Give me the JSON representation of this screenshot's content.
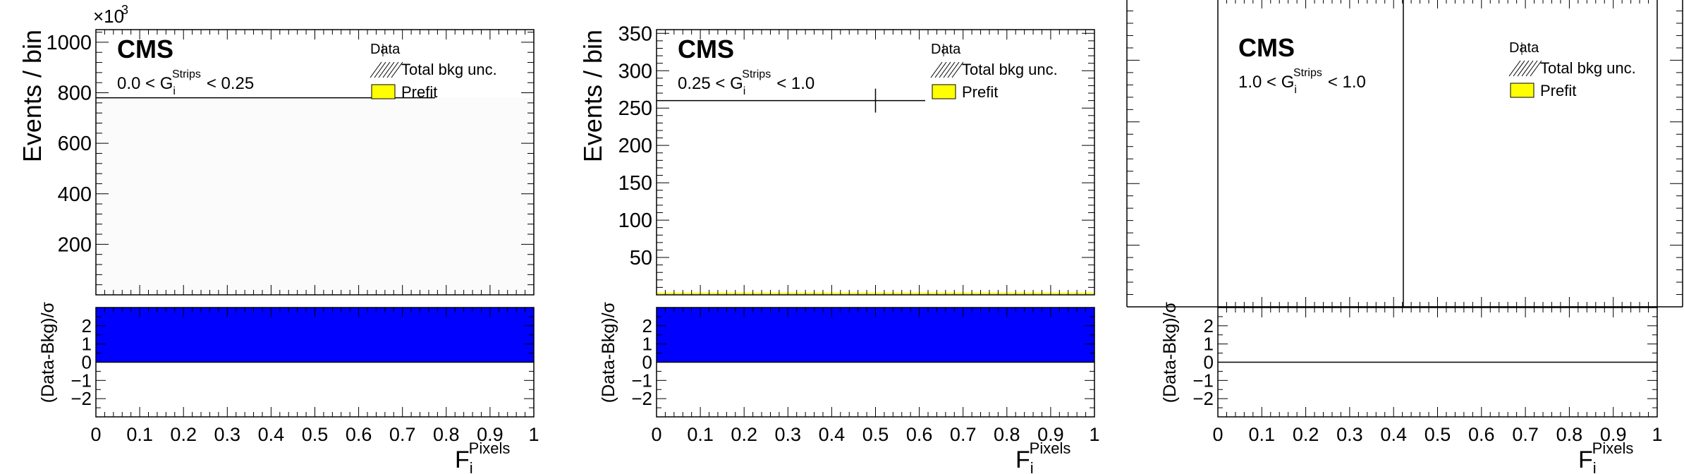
{
  "chart_data": [
    {
      "type": "bar",
      "experiment": "CMS",
      "region_label": "0.0 < G",
      "region_var_sub": "i",
      "region_var_sup": "Strips",
      "region_upper": "< 0.25",
      "ylabel": "Events / bin",
      "y_exponent_base": "×10",
      "y_exponent": "3",
      "xlabel_main": "F",
      "xlabel_sub": "i",
      "xlabel_sup": "Pixels",
      "ratio_ylabel": "(Data-Bkg)/σ",
      "legend": [
        "Data",
        "Total bkg unc.",
        "Prefit"
      ],
      "ylim": [
        0,
        1050000
      ],
      "yticks": [
        200000,
        400000,
        600000,
        800000,
        1000000
      ],
      "ytick_labels": [
        "200",
        "400",
        "600",
        "800",
        "1000"
      ],
      "xlim": [
        0,
        1
      ],
      "xtick_labels": [
        "0",
        "0.1",
        "0.2",
        "0.3",
        "0.4",
        "0.5",
        "0.6",
        "0.7",
        "0.8",
        "0.9",
        "1"
      ],
      "ratio_ylim": [
        -3,
        3
      ],
      "ratio_yticks": [
        -2,
        -1,
        0,
        1,
        2
      ],
      "ratio_ytick_labels": [
        "−2",
        "−1",
        "0",
        "1",
        "2"
      ],
      "data_points": [
        {
          "x": 0.5,
          "xerr": 0.5,
          "y": 780000,
          "yerr": 0
        }
      ],
      "background": [
        {
          "x0": 0,
          "x1": 1,
          "y": 780000
        }
      ],
      "pull": [
        {
          "x0": 0,
          "x1": 1,
          "value": 3
        }
      ],
      "has_background": true,
      "has_data_vline": false
    },
    {
      "type": "bar",
      "experiment": "CMS",
      "region_label": "0.25 < G",
      "region_var_sub": "i",
      "region_var_sup": "Strips",
      "region_upper": "< 1.0",
      "ylabel": "Events / bin",
      "y_exponent_base": "",
      "y_exponent": "",
      "xlabel_main": "F",
      "xlabel_sub": "i",
      "xlabel_sup": "Pixels",
      "ratio_ylabel": "(Data-Bkg)/σ",
      "legend": [
        "Data",
        "Total bkg unc.",
        "Prefit"
      ],
      "ylim": [
        0,
        355
      ],
      "yticks": [
        50,
        100,
        150,
        200,
        250,
        300,
        350
      ],
      "ytick_labels": [
        "50",
        "100",
        "150",
        "200",
        "250",
        "300",
        "350"
      ],
      "xlim": [
        0,
        1
      ],
      "xtick_labels": [
        "0",
        "0.1",
        "0.2",
        "0.3",
        "0.4",
        "0.5",
        "0.6",
        "0.7",
        "0.8",
        "0.9",
        "1"
      ],
      "ratio_ylim": [
        -3,
        3
      ],
      "ratio_yticks": [
        -2,
        -1,
        0,
        1,
        2
      ],
      "ratio_ytick_labels": [
        "−2",
        "−1",
        "0",
        "1",
        "2"
      ],
      "data_points": [
        {
          "x": 0.5,
          "xerr": 0.5,
          "y": 260,
          "yerr": 16
        }
      ],
      "background": [
        {
          "x0": 0,
          "x1": 1,
          "y": 1
        }
      ],
      "pull": [
        {
          "x0": 0,
          "x1": 1,
          "value": 3
        }
      ],
      "has_background": true,
      "has_data_vline": false
    },
    {
      "type": "bar",
      "experiment": "CMS",
      "region_label": "1.0 < G",
      "region_var_sub": "i",
      "region_var_sup": "Strips",
      "region_upper": "< 1.0",
      "ylabel": "",
      "y_exponent_base": "",
      "y_exponent": "",
      "xlabel_main": "F",
      "xlabel_sub": "i",
      "xlabel_sup": "Pixels",
      "ratio_ylabel": "(Data-Bkg)/σ",
      "legend": [
        "Data",
        "Total bkg unc.",
        "Prefit"
      ],
      "ylim": [
        0,
        1
      ],
      "yticks": [],
      "ytick_labels": [],
      "xlim": [
        0,
        1
      ],
      "xtick_labels": [
        "0",
        "0.1",
        "0.2",
        "0.3",
        "0.4",
        "0.5",
        "0.6",
        "0.7",
        "0.8",
        "0.9",
        "1"
      ],
      "ratio_ylim": [
        -3,
        3
      ],
      "ratio_yticks": [
        -2,
        -1,
        0,
        1,
        2
      ],
      "ratio_ytick_labels": [
        "−2",
        "−1",
        "0",
        "1",
        "2"
      ],
      "data_points": [],
      "background": [],
      "pull": [
        {
          "x0": 0,
          "x1": 1,
          "value": 0
        }
      ],
      "has_background": false,
      "has_data_vline": true,
      "data_vline_x": 0.42
    }
  ],
  "colors": {
    "prefit_fill": "#ffff00",
    "pull_fill": "#0000ff",
    "axis": "#000000",
    "bkg_fill": "#fbfbfb"
  }
}
